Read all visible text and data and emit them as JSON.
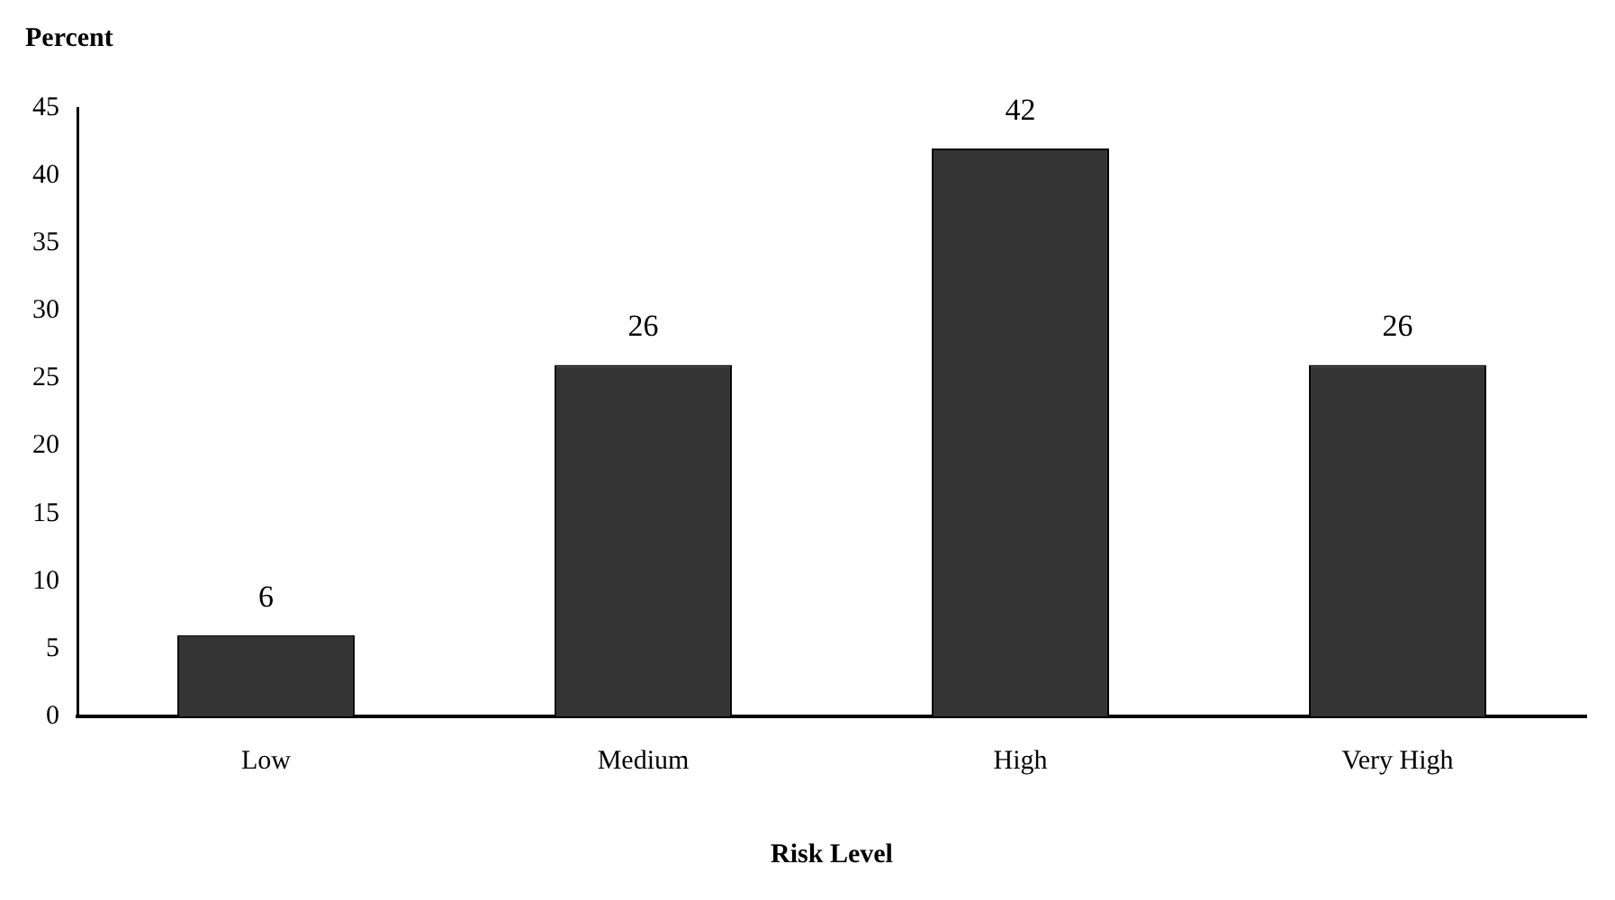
{
  "chart_data": {
    "type": "bar",
    "xlabel": "Risk Level",
    "ylabel": "Percent",
    "categories": [
      "Low",
      "Medium",
      "High",
      "Very High"
    ],
    "values": [
      6,
      26,
      42,
      26
    ],
    "color": "#333333",
    "ylim": [
      0,
      45
    ],
    "yticks": [
      0,
      5,
      10,
      15,
      20,
      25,
      30,
      35,
      40,
      45
    ],
    "grid": false,
    "legend": false,
    "data_labels": true
  }
}
